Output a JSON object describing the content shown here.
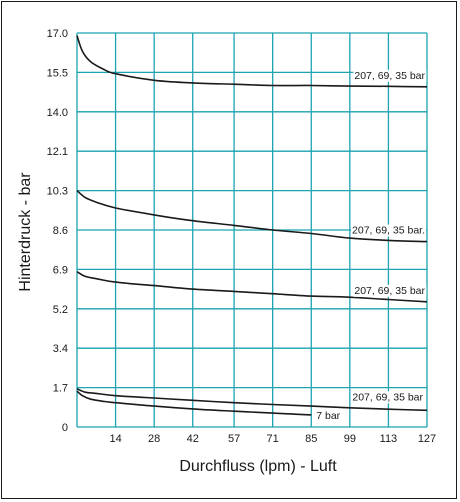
{
  "chart_data": {
    "type": "line",
    "title": "",
    "xlabel": "Durchfluss (lpm) - Luft",
    "ylabel": "Hinterdruck - bar",
    "x_ticks": [
      "14",
      "28",
      "42",
      "57",
      "71",
      "85",
      "99",
      "113",
      "127"
    ],
    "y_ticks": [
      "17.0",
      "15.5",
      "14.0",
      "12.1",
      "10.3",
      "8.6",
      "6.9",
      "5.2",
      "3.4",
      "1.7",
      "0"
    ],
    "grid": true,
    "series": [
      {
        "label": "207, 69, 35 bar",
        "points": [
          [
            0,
            16.9
          ],
          [
            2,
            16.3
          ],
          [
            5,
            15.9
          ],
          [
            10,
            15.6
          ],
          [
            14,
            15.45
          ],
          [
            28,
            15.2
          ],
          [
            42,
            15.1
          ],
          [
            57,
            15.05
          ],
          [
            71,
            15.0
          ],
          [
            85,
            15.0
          ],
          [
            99,
            14.98
          ],
          [
            113,
            14.97
          ],
          [
            127,
            14.95
          ]
        ]
      },
      {
        "label": "207, 69, 35 bar.",
        "points": [
          [
            0,
            10.3
          ],
          [
            3,
            10.0
          ],
          [
            7,
            9.8
          ],
          [
            14,
            9.55
          ],
          [
            28,
            9.25
          ],
          [
            42,
            9.0
          ],
          [
            57,
            8.8
          ],
          [
            71,
            8.6
          ],
          [
            85,
            8.45
          ],
          [
            99,
            8.25
          ],
          [
            113,
            8.15
          ],
          [
            127,
            8.1
          ]
        ]
      },
      {
        "label": "207, 69, 35 bar",
        "points": [
          [
            0,
            6.8
          ],
          [
            3,
            6.6
          ],
          [
            7,
            6.5
          ],
          [
            14,
            6.35
          ],
          [
            28,
            6.2
          ],
          [
            42,
            6.05
          ],
          [
            57,
            5.95
          ],
          [
            71,
            5.85
          ],
          [
            85,
            5.75
          ],
          [
            99,
            5.7
          ],
          [
            113,
            5.6
          ],
          [
            127,
            5.5
          ]
        ]
      },
      {
        "label": "207, 69, 35 bar",
        "points": [
          [
            0,
            1.65
          ],
          [
            3,
            1.5
          ],
          [
            7,
            1.45
          ],
          [
            14,
            1.35
          ],
          [
            28,
            1.25
          ],
          [
            42,
            1.15
          ],
          [
            57,
            1.05
          ],
          [
            71,
            0.97
          ],
          [
            85,
            0.9
          ],
          [
            99,
            0.83
          ],
          [
            113,
            0.77
          ],
          [
            127,
            0.72
          ]
        ]
      },
      {
        "label": "7 bar",
        "points": [
          [
            0,
            1.55
          ],
          [
            2,
            1.35
          ],
          [
            5,
            1.2
          ],
          [
            10,
            1.1
          ],
          [
            14,
            1.05
          ],
          [
            28,
            0.9
          ],
          [
            42,
            0.78
          ],
          [
            57,
            0.68
          ],
          [
            71,
            0.6
          ],
          [
            80,
            0.55
          ],
          [
            85,
            0.52
          ]
        ]
      }
    ],
    "xlim": [
      0,
      127
    ],
    "ylim": [
      0,
      17.0
    ]
  },
  "colors": {
    "grid": "#1aa3b0",
    "curve": "#1a1a1a",
    "frame": "#1a1a1a"
  }
}
